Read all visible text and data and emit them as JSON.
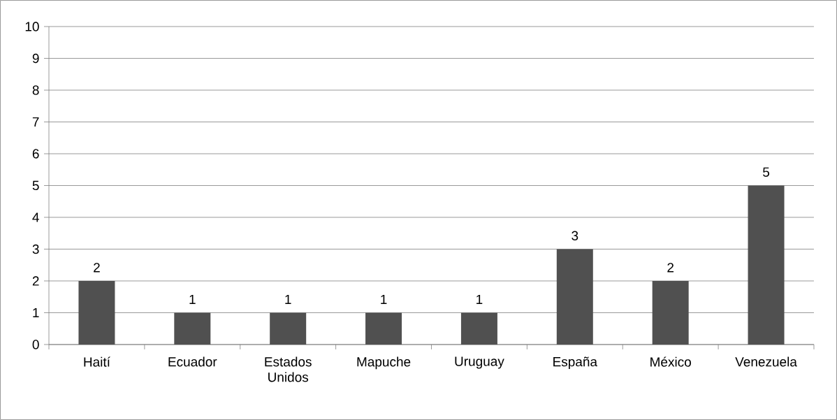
{
  "chart_data": {
    "type": "bar",
    "categories": [
      "Haití",
      "Ecuador",
      "Estados Unidos",
      "Mapuche",
      "Uruguay",
      "España",
      "México",
      "Venezuela"
    ],
    "values": [
      2,
      1,
      1,
      1,
      1,
      3,
      2,
      5
    ],
    "color": "#505050",
    "ylim": [
      0,
      10
    ],
    "yticks": [
      0,
      1,
      2,
      3,
      4,
      5,
      6,
      7,
      8,
      9,
      10
    ],
    "grid": "y",
    "data_labels": true
  }
}
